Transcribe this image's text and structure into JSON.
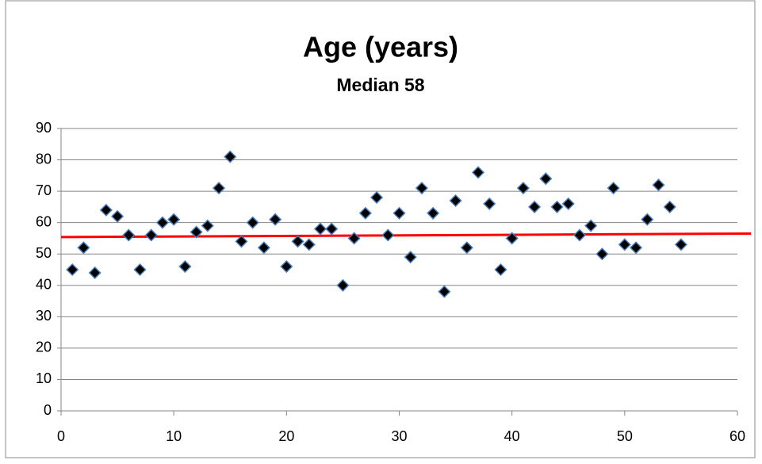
{
  "chart_data": {
    "type": "scatter",
    "title": "Age (years)",
    "subtitle": "Median 58",
    "x": [
      1,
      2,
      3,
      4,
      5,
      6,
      7,
      8,
      9,
      10,
      11,
      12,
      13,
      14,
      15,
      16,
      17,
      18,
      19,
      20,
      21,
      22,
      23,
      24,
      25,
      26,
      27,
      28,
      29,
      30,
      31,
      32,
      33,
      34,
      35,
      36,
      37,
      38,
      39,
      40,
      41,
      42,
      43,
      44,
      45,
      46,
      47,
      48,
      49,
      50,
      51,
      52,
      53,
      54,
      55
    ],
    "values": [
      45,
      52,
      44,
      64,
      62,
      56,
      45,
      56,
      60,
      61,
      46,
      57,
      59,
      71,
      81,
      54,
      60,
      52,
      61,
      46,
      54,
      53,
      58,
      58,
      40,
      55,
      63,
      68,
      56,
      63,
      49,
      71,
      63,
      38,
      67,
      52,
      76,
      66,
      45,
      55,
      71,
      65,
      74,
      65,
      66,
      56,
      59,
      50,
      71,
      53,
      52,
      61,
      72,
      65,
      53
    ],
    "color": "#000000",
    "marker_edge": "#4a7ebb",
    "trendline": {
      "x": [
        0,
        61.2
      ],
      "values": [
        55.4,
        56.5
      ],
      "color": "#ff0000"
    },
    "xlim": [
      0,
      60
    ],
    "xticks": [
      0,
      10,
      20,
      30,
      40,
      50,
      60
    ],
    "ylim": [
      0,
      90
    ],
    "yticks": [
      0,
      10,
      20,
      30,
      40,
      50,
      60,
      70,
      80,
      90
    ],
    "grid": true
  }
}
